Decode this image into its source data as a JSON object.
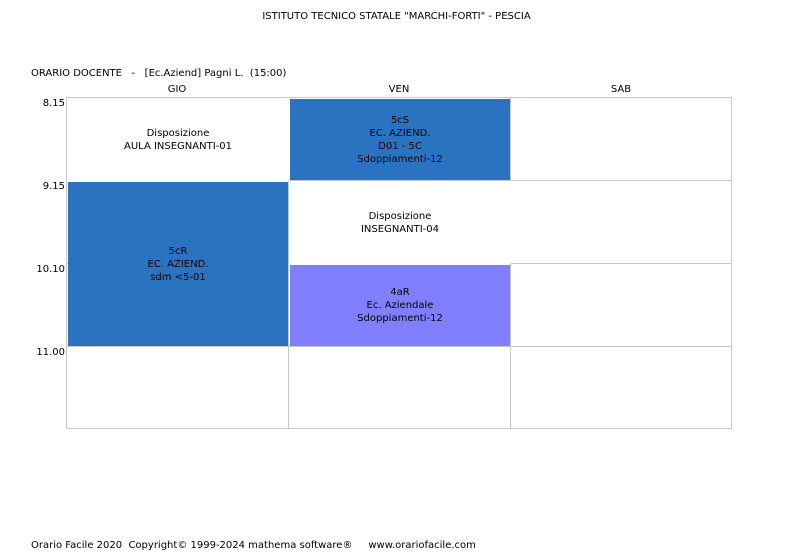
{
  "header": {
    "school": "ISTITUTO TECNICO STATALE \"MARCHI-FORTI\" - PESCIA",
    "teacher_line": "ORARIO DOCENTE   -   [Ec.Aziend] Pagni L.  (15:00)"
  },
  "days": [
    "GIO",
    "VEN",
    "SAB"
  ],
  "times": [
    "8.15",
    "9.15",
    "10.10",
    "11.00"
  ],
  "lessons": {
    "gio_disp": [
      "Disposizione",
      "AULA INSEGNANTI-01"
    ],
    "gio_5cr": [
      "5cR",
      "EC. AZIEND.",
      "sdm <5-01"
    ],
    "ven_5cs": [
      "5cS",
      "EC. AZIEND.",
      "D01 - 5C",
      "Sdoppiamenti-12"
    ],
    "ven_disp": [
      "Disposizione",
      "INSEGNANTI-04"
    ],
    "ven_4ar": [
      "4aR",
      "Ec. Aziendale",
      "Sdoppiamenti-12"
    ]
  },
  "colors": {
    "lesson_dark_blue": "#2a73c0",
    "lesson_light_purple": "#7f7fff",
    "grid_line": "#c8c8c8"
  },
  "footer": "Orario Facile 2020  Copyright© 1999-2024 mathema software®     www.orariofacile.com"
}
